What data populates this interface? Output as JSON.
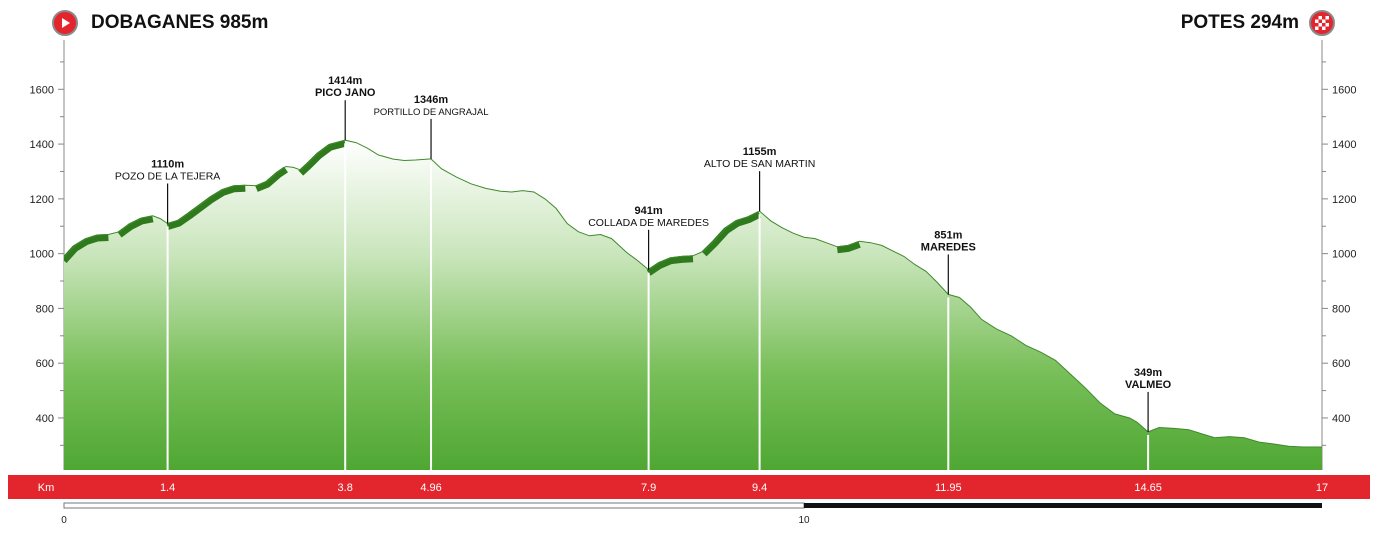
{
  "header": {
    "start": "DOBAGANES 985m",
    "finish": "POTES 294m"
  },
  "chart_data": {
    "type": "area",
    "yticks": [
      "400",
      "600",
      "800",
      "1000",
      "1200",
      "1400",
      "1600"
    ],
    "ylim": [
      210,
      1780
    ],
    "xlim": [
      0,
      17
    ],
    "km_axis_label": "Km",
    "km_ticks": [
      "1.4",
      "3.8",
      "4.96",
      "7.9",
      "9.4",
      "11.95",
      "14.65",
      "17"
    ],
    "scale_labels": [
      "0",
      "10"
    ],
    "profile": [
      [
        0,
        985
      ],
      [
        0.15,
        1030
      ],
      [
        0.3,
        1055
      ],
      [
        0.45,
        1068
      ],
      [
        0.6,
        1070
      ],
      [
        0.75,
        1080
      ],
      [
        0.9,
        1110
      ],
      [
        1.05,
        1130
      ],
      [
        1.2,
        1138
      ],
      [
        1.3,
        1128
      ],
      [
        1.4,
        1110
      ],
      [
        1.55,
        1122
      ],
      [
        1.7,
        1150
      ],
      [
        1.85,
        1180
      ],
      [
        2.0,
        1210
      ],
      [
        2.15,
        1235
      ],
      [
        2.3,
        1248
      ],
      [
        2.45,
        1250
      ],
      [
        2.6,
        1248
      ],
      [
        2.75,
        1265
      ],
      [
        2.9,
        1300
      ],
      [
        3.0,
        1318
      ],
      [
        3.1,
        1315
      ],
      [
        3.2,
        1305
      ],
      [
        3.3,
        1330
      ],
      [
        3.45,
        1370
      ],
      [
        3.6,
        1400
      ],
      [
        3.8,
        1414
      ],
      [
        3.95,
        1405
      ],
      [
        4.1,
        1385
      ],
      [
        4.25,
        1360
      ],
      [
        4.45,
        1345
      ],
      [
        4.6,
        1340
      ],
      [
        4.75,
        1342
      ],
      [
        4.96,
        1346
      ],
      [
        5.1,
        1310
      ],
      [
        5.3,
        1280
      ],
      [
        5.5,
        1255
      ],
      [
        5.7,
        1238
      ],
      [
        5.9,
        1228
      ],
      [
        6.05,
        1225
      ],
      [
        6.2,
        1230
      ],
      [
        6.35,
        1225
      ],
      [
        6.5,
        1200
      ],
      [
        6.65,
        1165
      ],
      [
        6.8,
        1110
      ],
      [
        6.95,
        1080
      ],
      [
        7.1,
        1065
      ],
      [
        7.25,
        1070
      ],
      [
        7.4,
        1055
      ],
      [
        7.6,
        1005
      ],
      [
        7.75,
        975
      ],
      [
        7.9,
        941
      ],
      [
        8.05,
        968
      ],
      [
        8.2,
        985
      ],
      [
        8.35,
        990
      ],
      [
        8.5,
        992
      ],
      [
        8.65,
        1010
      ],
      [
        8.8,
        1050
      ],
      [
        8.95,
        1095
      ],
      [
        9.1,
        1122
      ],
      [
        9.25,
        1135
      ],
      [
        9.4,
        1155
      ],
      [
        9.55,
        1120
      ],
      [
        9.7,
        1095
      ],
      [
        9.85,
        1075
      ],
      [
        10.0,
        1060
      ],
      [
        10.15,
        1055
      ],
      [
        10.3,
        1040
      ],
      [
        10.45,
        1025
      ],
      [
        10.6,
        1030
      ],
      [
        10.75,
        1045
      ],
      [
        10.9,
        1040
      ],
      [
        11.05,
        1030
      ],
      [
        11.2,
        1010
      ],
      [
        11.35,
        990
      ],
      [
        11.5,
        960
      ],
      [
        11.65,
        935
      ],
      [
        11.8,
        895
      ],
      [
        11.95,
        851
      ],
      [
        12.1,
        840
      ],
      [
        12.25,
        805
      ],
      [
        12.4,
        760
      ],
      [
        12.6,
        725
      ],
      [
        12.8,
        700
      ],
      [
        13.0,
        665
      ],
      [
        13.2,
        640
      ],
      [
        13.4,
        610
      ],
      [
        13.6,
        560
      ],
      [
        13.8,
        510
      ],
      [
        14.0,
        455
      ],
      [
        14.2,
        415
      ],
      [
        14.4,
        400
      ],
      [
        14.5,
        385
      ],
      [
        14.65,
        349
      ],
      [
        14.8,
        365
      ],
      [
        15.0,
        362
      ],
      [
        15.2,
        357
      ],
      [
        15.4,
        340
      ],
      [
        15.55,
        328
      ],
      [
        15.75,
        332
      ],
      [
        15.95,
        328
      ],
      [
        16.15,
        312
      ],
      [
        16.35,
        305
      ],
      [
        16.55,
        297
      ],
      [
        16.75,
        294
      ],
      [
        17.0,
        294
      ]
    ],
    "climbs": [
      [
        0,
        0.6
      ],
      [
        0.75,
        1.2
      ],
      [
        1.4,
        2.45
      ],
      [
        2.6,
        3.0
      ],
      [
        3.2,
        3.8
      ],
      [
        7.9,
        8.5
      ],
      [
        8.65,
        9.4
      ],
      [
        10.45,
        10.75
      ]
    ],
    "waypoints": [
      {
        "km": 1.4,
        "alt": 1110,
        "alt_label": "1110m",
        "name": "POZO DE LA TEJERA",
        "style": "normal"
      },
      {
        "km": 3.8,
        "alt": 1414,
        "alt_label": "1414m",
        "name": "PICO JANO",
        "style": "bold"
      },
      {
        "km": 4.96,
        "alt": 1346,
        "alt_label": "1346m",
        "name": "PORTILLO DE ANGRAJAL",
        "style": "small"
      },
      {
        "km": 7.9,
        "alt": 941,
        "alt_label": "941m",
        "name": "COLLADA DE MAREDES",
        "style": "normal"
      },
      {
        "km": 9.4,
        "alt": 1155,
        "alt_label": "1155m",
        "name": "ALTO DE SAN MARTIN",
        "style": "normal"
      },
      {
        "km": 11.95,
        "alt": 851,
        "alt_label": "851m",
        "name": "MAREDES",
        "style": "bold"
      },
      {
        "km": 14.65,
        "alt": 349,
        "alt_label": "349m",
        "name": "VALMEO",
        "style": "bold"
      }
    ]
  }
}
